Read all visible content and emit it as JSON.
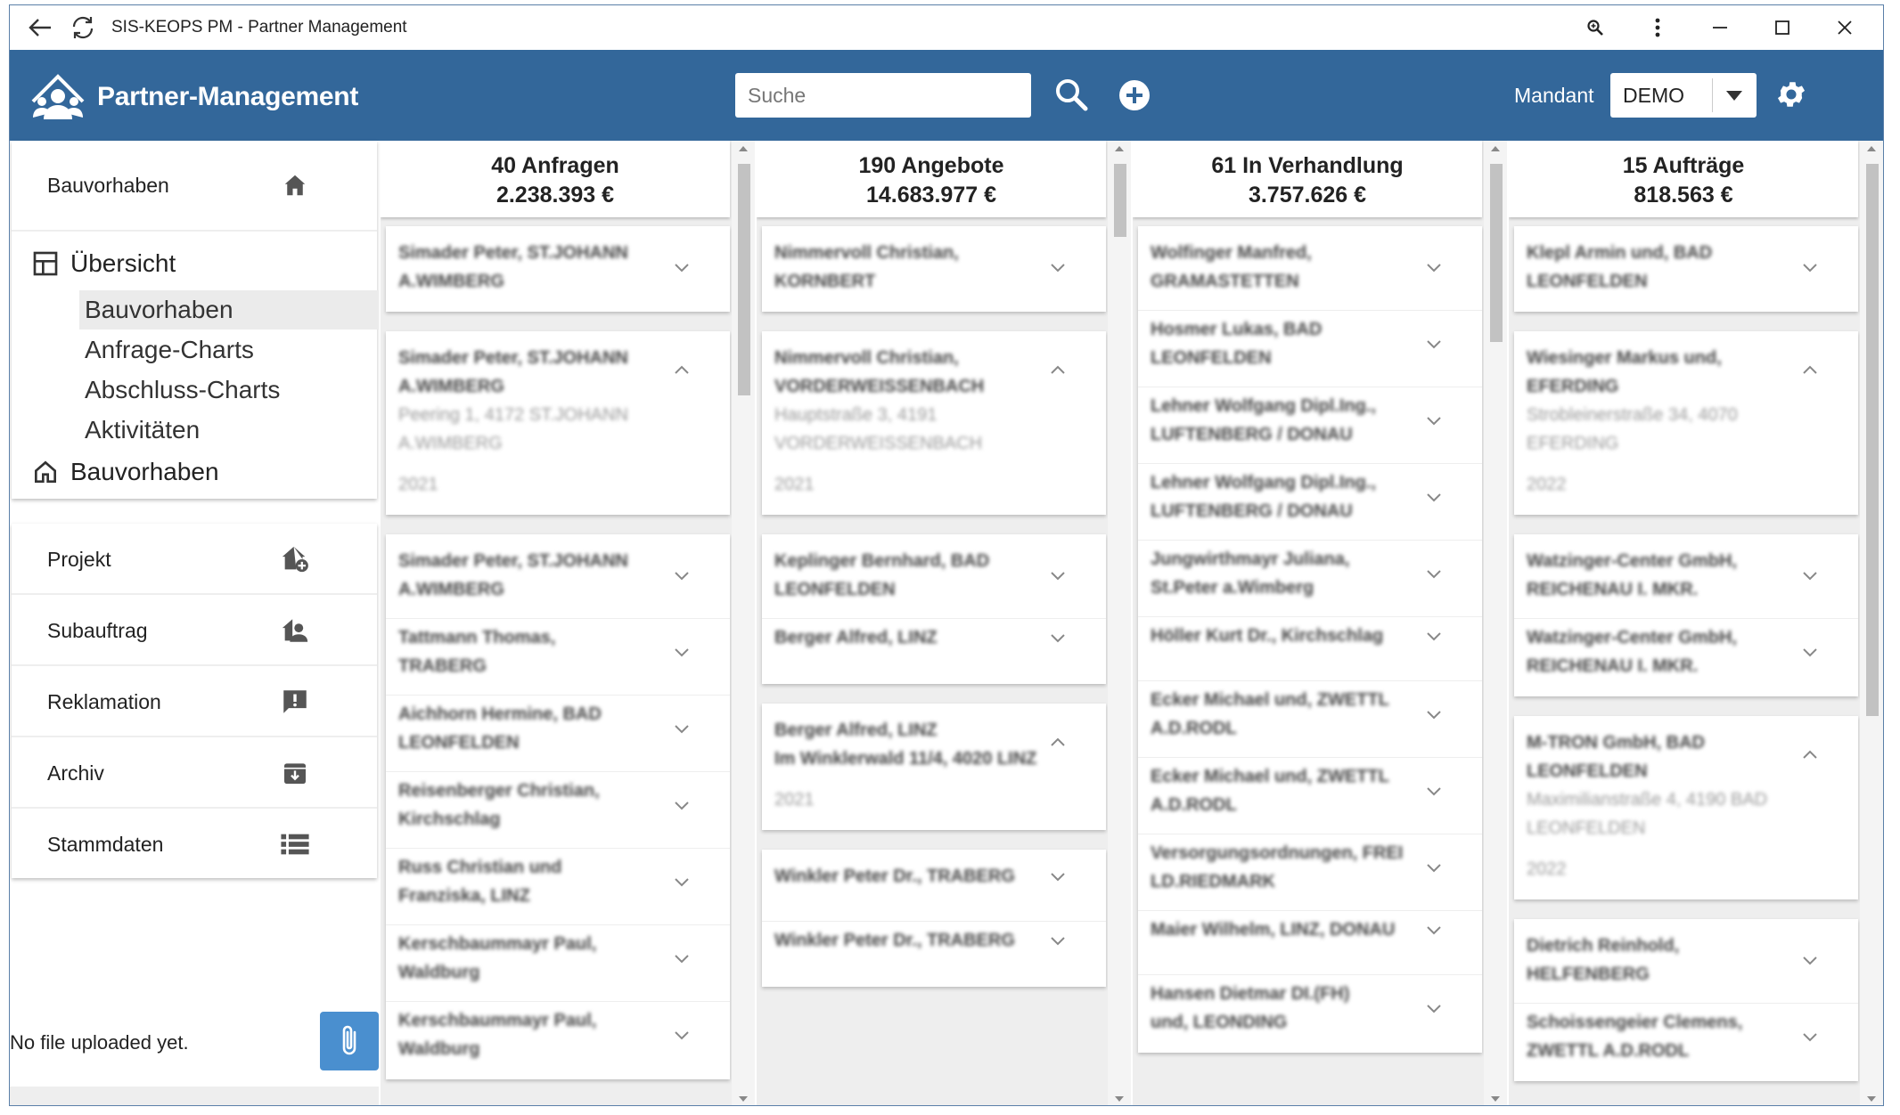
{
  "window": {
    "title": "SIS-KEOPS PM - Partner Management"
  },
  "header": {
    "brand": "Partner-Management",
    "search_placeholder": "Suche",
    "mandant_label": "Mandant",
    "mandant_value": "DEMO"
  },
  "sidebar": {
    "top_item": "Bauvorhaben",
    "tree_title": "Übersicht",
    "tree_items": [
      "Bauvorhaben",
      "Anfrage-Charts",
      "Abschluss-Charts",
      "Aktivitäten"
    ],
    "tree_selected_index": 0,
    "tree_footer": "Bauvorhaben",
    "nav_items": [
      {
        "label": "Projekt",
        "icon": "home-add-icon"
      },
      {
        "label": "Subauftrag",
        "icon": "person-house-icon"
      },
      {
        "label": "Reklamation",
        "icon": "alert-message-icon"
      },
      {
        "label": "Archiv",
        "icon": "archive-icon"
      },
      {
        "label": "Stammdaten",
        "icon": "list-icon"
      }
    ],
    "file_status": "No file uploaded yet."
  },
  "columns": [
    {
      "count_label": "40 Anfragen",
      "amount": "2.238.393 €",
      "cards": [
        {
          "entries": [
            {
              "lines": [
                "Simader Peter, ST.JOHANN",
                "A.WIMBERG"
              ],
              "chevron": "down"
            }
          ]
        },
        {
          "entries": [
            {
              "lines": [
                "Simader Peter, ST.JOHANN",
                "A.WIMBERG",
                "Peering 1, 4172 ST.JOHANN",
                "A.WIMBERG",
                "",
                "2021"
              ],
              "chevron": "up"
            }
          ]
        },
        {
          "entries": [
            {
              "lines": [
                "Simader Peter, ST.JOHANN",
                "A.WIMBERG"
              ],
              "chevron": "down"
            },
            {
              "lines": [
                "Tattmann Thomas,",
                "TRABERG"
              ],
              "chevron": "down"
            },
            {
              "lines": [
                "Aichhorn Hermine, BAD",
                "LEONFELDEN"
              ],
              "chevron": "down"
            },
            {
              "lines": [
                "Reisenberger Christian,",
                "Kirchschlag"
              ],
              "chevron": "down"
            },
            {
              "lines": [
                "Russ Christian und",
                "Franziska, LINZ"
              ],
              "chevron": "down"
            },
            {
              "lines": [
                "Kerschbaummayr Paul,",
                "Waldburg"
              ],
              "chevron": "down"
            },
            {
              "lines": [
                "Kerschbaummayr Paul,",
                "Waldburg"
              ],
              "chevron": "down"
            }
          ]
        }
      ]
    },
    {
      "count_label": "190 Angebote",
      "amount": "14.683.977 €",
      "cards": [
        {
          "entries": [
            {
              "lines": [
                "Nimmervoll Christian,",
                "KORNBERT"
              ],
              "chevron": "down"
            }
          ]
        },
        {
          "entries": [
            {
              "lines": [
                "Nimmervoll Christian,",
                "VORDERWEISSENBACH",
                "Hauptstraße 3, 4191",
                "VORDERWEISSENBACH",
                "",
                "2021"
              ],
              "chevron": "up"
            }
          ]
        },
        {
          "entries": [
            {
              "lines": [
                "Keplinger Bernhard, BAD",
                "LEONFELDEN"
              ],
              "chevron": "down"
            },
            {
              "lines": [
                "Berger Alfred, LINZ"
              ],
              "chevron": "down"
            }
          ]
        },
        {
          "entries": [
            {
              "lines": [
                "Berger Alfred, LINZ",
                "Im Winklerwald 11/4, 4020 LINZ",
                "",
                "2021"
              ],
              "chevron": "up"
            }
          ]
        },
        {
          "entries": [
            {
              "lines": [
                "Winkler Peter Dr., TRABERG"
              ],
              "chevron": "down"
            },
            {
              "lines": [
                "Winkler Peter Dr., TRABERG"
              ],
              "chevron": "down"
            }
          ]
        }
      ]
    },
    {
      "count_label": "61 In Verhandlung",
      "amount": "3.757.626 €",
      "cards": [
        {
          "entries": [
            {
              "lines": [
                "Wolfinger Manfred,",
                "GRAMASTETTEN"
              ],
              "chevron": "down"
            },
            {
              "lines": [
                "Hosmer Lukas, BAD",
                "LEONFELDEN"
              ],
              "chevron": "down"
            },
            {
              "lines": [
                "Lehner Wolfgang Dipl.Ing.,",
                "LUFTENBERG / DONAU"
              ],
              "chevron": "down"
            },
            {
              "lines": [
                "Lehner Wolfgang Dipl.Ing.,",
                "LUFTENBERG / DONAU"
              ],
              "chevron": "down"
            },
            {
              "lines": [
                "Jungwirthmayr Juliana,",
                "St.Peter a.Wimberg"
              ],
              "chevron": "down"
            },
            {
              "lines": [
                "Höller Kurt Dr., Kirchschlag"
              ],
              "chevron": "down"
            },
            {
              "lines": [
                "Ecker Michael und, ZWETTL",
                "A.D.RODL"
              ],
              "chevron": "down"
            },
            {
              "lines": [
                "Ecker Michael und, ZWETTL",
                "A.D.RODL"
              ],
              "chevron": "down"
            },
            {
              "lines": [
                "Versorgungsordnungen, FREI",
                "LD.RIEDMARK"
              ],
              "chevron": "down"
            },
            {
              "lines": [
                "Maier Wilhelm, LINZ, DONAU"
              ],
              "chevron": "down"
            },
            {
              "lines": [
                "Hansen Dietmar DI.(FH)",
                "und, LEONDING"
              ],
              "chevron": "down"
            }
          ]
        }
      ]
    },
    {
      "count_label": "15 Aufträge",
      "amount": "818.563 €",
      "cards": [
        {
          "entries": [
            {
              "lines": [
                "Klepl Armin und, BAD",
                "LEONFELDEN"
              ],
              "chevron": "down"
            }
          ]
        },
        {
          "entries": [
            {
              "lines": [
                "Wiesinger Markus und,",
                "EFERDING",
                "Strobleinerstraße 34, 4070",
                "EFERDING",
                "",
                "2022"
              ],
              "chevron": "up"
            }
          ]
        },
        {
          "entries": [
            {
              "lines": [
                "Watzinger-Center GmbH,",
                "REICHENAU I. MKR."
              ],
              "chevron": "down"
            },
            {
              "lines": [
                "Watzinger-Center GmbH,",
                "REICHENAU I. MKR."
              ],
              "chevron": "down"
            }
          ]
        },
        {
          "entries": [
            {
              "lines": [
                "M-TRON GmbH, BAD",
                "LEONFELDEN",
                "Maximilianstraße 4, 4190 BAD",
                "LEONFELDEN",
                "",
                "2022"
              ],
              "chevron": "up"
            }
          ]
        },
        {
          "entries": [
            {
              "lines": [
                "Dietrich Reinhold,",
                "HELFENBERG"
              ],
              "chevron": "down"
            },
            {
              "lines": [
                "Schoissengeier Clemens,",
                "ZWETTL A.D.RODL"
              ],
              "chevron": "down"
            }
          ]
        }
      ]
    }
  ],
  "colors": {
    "appbar": "#33679a",
    "accent_button": "#4a8fcf",
    "background": "#eeeeee"
  }
}
